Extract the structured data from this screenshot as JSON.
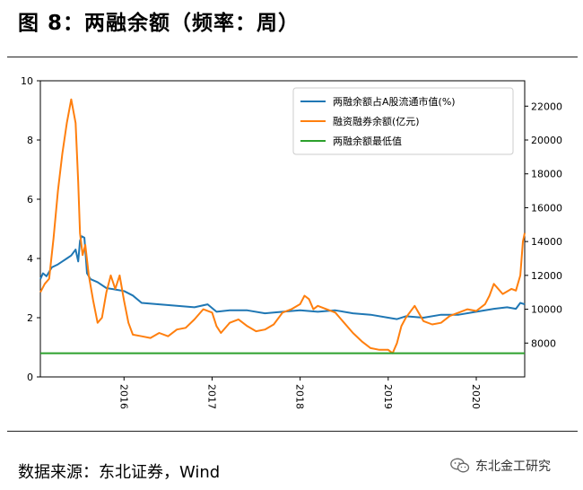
{
  "title": "图 8：两融余额（频率：周）",
  "source": "数据来源：东北证券，Wind",
  "watermark": {
    "icon": "wechat-icon",
    "text": "东北金工研究"
  },
  "chart_data": {
    "type": "line",
    "title": "",
    "legend_position": "top-right",
    "grid": false,
    "x_range": [
      2015.05,
      2020.55
    ],
    "x_ticks": [
      {
        "value": 2016,
        "label": "2016"
      },
      {
        "value": 2017,
        "label": "2017"
      },
      {
        "value": 2018,
        "label": "2018"
      },
      {
        "value": 2019,
        "label": "2019"
      },
      {
        "value": 2020,
        "label": "2020"
      }
    ],
    "y_left": {
      "range": [
        0,
        10
      ],
      "ticks": [
        0,
        2,
        4,
        6,
        8,
        10
      ]
    },
    "y_right": {
      "range": [
        6000,
        23500
      ],
      "ticks": [
        8000,
        10000,
        12000,
        14000,
        16000,
        18000,
        20000,
        22000
      ]
    },
    "series": [
      {
        "name": "两融余额占A股流通市值(%)",
        "axis": "left",
        "color": "#1f77b4",
        "x": [
          2015.05,
          2015.08,
          2015.12,
          2015.18,
          2015.25,
          2015.3,
          2015.35,
          2015.4,
          2015.45,
          2015.48,
          2015.5,
          2015.52,
          2015.55,
          2015.58,
          2015.62,
          2015.7,
          2015.8,
          2015.9,
          2016.0,
          2016.1,
          2016.2,
          2016.4,
          2016.6,
          2016.8,
          2016.95,
          2017.05,
          2017.2,
          2017.4,
          2017.6,
          2017.8,
          2018.0,
          2018.2,
          2018.4,
          2018.6,
          2018.8,
          2019.0,
          2019.1,
          2019.2,
          2019.4,
          2019.6,
          2019.8,
          2020.0,
          2020.2,
          2020.35,
          2020.45,
          2020.5,
          2020.55
        ],
        "y": [
          3.3,
          3.5,
          3.4,
          3.7,
          3.8,
          3.9,
          4.0,
          4.1,
          4.3,
          3.9,
          4.6,
          4.75,
          4.7,
          3.5,
          3.3,
          3.2,
          3.0,
          2.95,
          2.9,
          2.75,
          2.5,
          2.45,
          2.4,
          2.35,
          2.45,
          2.2,
          2.25,
          2.25,
          2.15,
          2.2,
          2.25,
          2.2,
          2.25,
          2.15,
          2.1,
          2.0,
          1.95,
          2.05,
          2.0,
          2.1,
          2.1,
          2.2,
          2.3,
          2.35,
          2.3,
          2.5,
          2.45
        ]
      },
      {
        "name": "融资融券余额(亿元)",
        "axis": "right",
        "color": "#ff7f0e",
        "x": [
          2015.05,
          2015.1,
          2015.15,
          2015.2,
          2015.25,
          2015.3,
          2015.35,
          2015.4,
          2015.45,
          2015.48,
          2015.5,
          2015.53,
          2015.56,
          2015.6,
          2015.65,
          2015.7,
          2015.75,
          2015.8,
          2015.85,
          2015.9,
          2015.95,
          2016.0,
          2016.05,
          2016.1,
          2016.2,
          2016.3,
          2016.4,
          2016.5,
          2016.6,
          2016.7,
          2016.8,
          2016.9,
          2017.0,
          2017.05,
          2017.1,
          2017.2,
          2017.3,
          2017.4,
          2017.5,
          2017.6,
          2017.7,
          2017.8,
          2017.9,
          2018.0,
          2018.05,
          2018.1,
          2018.15,
          2018.2,
          2018.3,
          2018.4,
          2018.5,
          2018.6,
          2018.7,
          2018.8,
          2018.9,
          2019.0,
          2019.05,
          2019.1,
          2019.15,
          2019.2,
          2019.3,
          2019.4,
          2019.5,
          2019.6,
          2019.7,
          2019.8,
          2019.9,
          2020.0,
          2020.1,
          2020.15,
          2020.2,
          2020.3,
          2020.4,
          2020.45,
          2020.5,
          2020.53,
          2020.55
        ],
        "y": [
          11000,
          11500,
          11800,
          14200,
          17000,
          19200,
          21000,
          22400,
          21000,
          17500,
          14500,
          13200,
          13800,
          12000,
          10500,
          9200,
          9500,
          11000,
          12000,
          11200,
          12000,
          10500,
          9200,
          8500,
          8400,
          8300,
          8600,
          8400,
          8800,
          8900,
          9400,
          10000,
          9800,
          9000,
          8600,
          9200,
          9400,
          9000,
          8700,
          8800,
          9100,
          9800,
          10000,
          10300,
          10800,
          10600,
          10000,
          10200,
          10000,
          9800,
          9200,
          8600,
          8100,
          7700,
          7600,
          7600,
          7400,
          8000,
          9000,
          9500,
          10200,
          9300,
          9100,
          9200,
          9600,
          9800,
          10000,
          9900,
          10300,
          10800,
          11500,
          10900,
          11200,
          11100,
          12000,
          14000,
          14500
        ]
      },
      {
        "name": "两融余额最低值",
        "axis": "right",
        "color": "#2ca02c",
        "x": [
          2015.05,
          2020.55
        ],
        "y": [
          7400,
          7400
        ]
      }
    ]
  }
}
